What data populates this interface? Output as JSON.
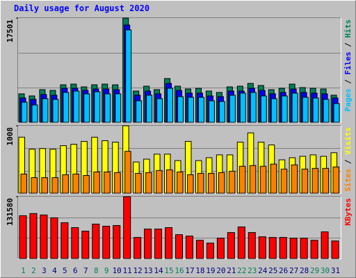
{
  "title": "Daily usage for August 2020",
  "legend_separator": " / ",
  "chart_data": [
    {
      "type": "bar",
      "ylim": [
        0,
        17501
      ],
      "yticks": [
        17501
      ],
      "series": [
        {
          "name": "Hits",
          "color": "#00805c",
          "values": [
            4783,
            4433,
            5483,
            5367,
            6300,
            6417,
            5950,
            6300,
            6417,
            6300,
            17501,
            5250,
            6067,
            5483,
            7350,
            6067,
            5600,
            5717,
            5250,
            5017,
            5950,
            6067,
            6533,
            6183,
            5483,
            5717,
            6417,
            5833,
            5717,
            5600,
            4550
          ]
        },
        {
          "name": "Files",
          "color": "#0000ff",
          "values": [
            4083,
            3850,
            4667,
            4550,
            5717,
            5717,
            5367,
            5600,
            5600,
            5483,
            16333,
            4550,
            5250,
            4783,
            6533,
            5367,
            4900,
            4900,
            4433,
            4317,
            5250,
            5250,
            5717,
            5367,
            4783,
            5017,
            5600,
            5017,
            4900,
            4783,
            4083
          ]
        },
        {
          "name": "Pages",
          "color": "#00c0ff",
          "values": [
            3383,
            2917,
            3967,
            3850,
            5017,
            5250,
            4783,
            5133,
            4783,
            4783,
            15517,
            3617,
            4550,
            3967,
            5717,
            4317,
            4200,
            4200,
            3617,
            3500,
            4550,
            4900,
            5017,
            4433,
            3967,
            4433,
            4900,
            4200,
            4083,
            3850,
            3150
          ]
        }
      ]
    },
    {
      "type": "bar",
      "ylim": [
        0,
        1008
      ],
      "yticks": [
        1008
      ],
      "series": [
        {
          "name": "Visits",
          "color": "#ffff00",
          "values": [
            838,
            658,
            668,
            658,
            711,
            732,
            775,
            838,
            785,
            764,
            1008,
            467,
            509,
            584,
            584,
            488,
            775,
            488,
            531,
            573,
            573,
            764,
            902,
            764,
            722,
            499,
            531,
            552,
            573,
            552,
            605
          ]
        },
        {
          "name": "Sites",
          "color": "#ff8000",
          "values": [
            287,
            233,
            233,
            233,
            276,
            287,
            265,
            318,
            318,
            308,
            626,
            297,
            308,
            340,
            350,
            318,
            276,
            297,
            297,
            308,
            329,
            403,
            414,
            403,
            435,
            361,
            424,
            361,
            371,
            371,
            393
          ]
        }
      ]
    },
    {
      "type": "bar",
      "ylim": [
        0,
        131580
      ],
      "yticks": [
        131580
      ],
      "categories": [
        "1",
        "2",
        "3",
        "4",
        "5",
        "6",
        "7",
        "8",
        "9",
        "10",
        "11",
        "12",
        "13",
        "14",
        "15",
        "16",
        "17",
        "18",
        "19",
        "20",
        "21",
        "22",
        "23",
        "24",
        "25",
        "26",
        "27",
        "28",
        "29",
        "30",
        "31"
      ],
      "category_colors": [
        "#00805c",
        "#00805c",
        "#000080",
        "#000080",
        "#000080",
        "#000080",
        "#000080",
        "#00805c",
        "#00805c",
        "#000080",
        "#000080",
        "#000080",
        "#000080",
        "#000080",
        "#00805c",
        "#00805c",
        "#000080",
        "#000080",
        "#000080",
        "#000080",
        "#000080",
        "#00805c",
        "#00805c",
        "#000080",
        "#000080",
        "#000080",
        "#000080",
        "#000080",
        "#00805c",
        "#00805c",
        "#000080"
      ],
      "series": [
        {
          "name": "KBytes",
          "color": "#ff0000",
          "values": [
            91200,
            95700,
            92700,
            86700,
            76200,
            65800,
            58300,
            73300,
            68800,
            70300,
            131580,
            44900,
            62800,
            62800,
            65800,
            50800,
            47800,
            38900,
            32900,
            43400,
            55300,
            67300,
            55300,
            46300,
            44900,
            44900,
            43400,
            43400,
            38900,
            56800,
            37400
          ]
        }
      ]
    }
  ]
}
